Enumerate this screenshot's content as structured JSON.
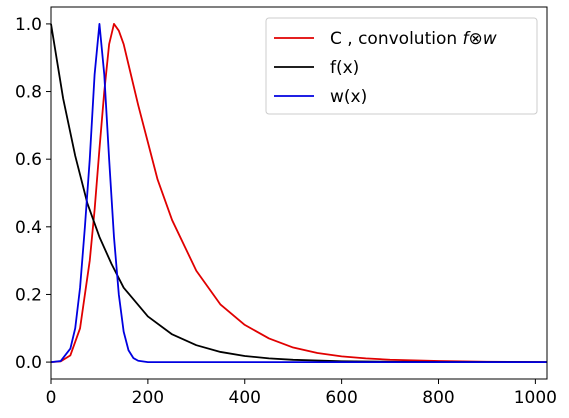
{
  "chart_data": {
    "type": "line",
    "title": "",
    "xlabel": "",
    "ylabel": "",
    "xlim": [
      0,
      1024
    ],
    "ylim": [
      -0.05,
      1.05
    ],
    "grid": false,
    "legend_position": "top-right",
    "x_ticks": [
      "0",
      "200",
      "400",
      "600",
      "800",
      "1000"
    ],
    "y_ticks": [
      "0.0",
      "0.2",
      "0.4",
      "0.6",
      "0.8",
      "1.0"
    ],
    "legend": {
      "c_prefix": "C , convolution ",
      "c_formula": "f⊗w"
    },
    "series": [
      {
        "name": "C , convolution f⊗w",
        "color": "#e00000",
        "x": [
          0,
          20,
          40,
          60,
          80,
          90,
          100,
          110,
          120,
          130,
          140,
          150,
          160,
          180,
          200,
          220,
          250,
          300,
          350,
          400,
          450,
          500,
          550,
          600,
          650,
          700,
          800,
          900,
          1024
        ],
        "y": [
          0.0,
          0.002,
          0.02,
          0.1,
          0.3,
          0.45,
          0.63,
          0.8,
          0.94,
          1.0,
          0.98,
          0.94,
          0.88,
          0.76,
          0.65,
          0.54,
          0.42,
          0.27,
          0.17,
          0.11,
          0.07,
          0.043,
          0.027,
          0.017,
          0.011,
          0.007,
          0.003,
          0.001,
          0.0
        ]
      },
      {
        "name": "f(x)",
        "color": "#000000",
        "x": [
          0,
          25,
          50,
          75,
          100,
          125,
          150,
          200,
          250,
          300,
          350,
          400,
          450,
          500,
          600,
          700,
          800,
          900,
          1024
        ],
        "y": [
          1.0,
          0.78,
          0.61,
          0.47,
          0.37,
          0.29,
          0.22,
          0.135,
          0.082,
          0.05,
          0.03,
          0.018,
          0.011,
          0.0067,
          0.0025,
          0.0009,
          0.0003,
          0.0001,
          0.0
        ]
      },
      {
        "name": "w(x)",
        "color": "#0000e0",
        "x": [
          0,
          20,
          40,
          50,
          60,
          70,
          80,
          90,
          100,
          110,
          120,
          130,
          140,
          150,
          160,
          170,
          180,
          200,
          300,
          1024
        ],
        "y": [
          0.0,
          0.003,
          0.04,
          0.1,
          0.22,
          0.4,
          0.6,
          0.85,
          1.0,
          0.85,
          0.6,
          0.37,
          0.2,
          0.09,
          0.035,
          0.012,
          0.004,
          0.0,
          0.0,
          0.0
        ]
      }
    ]
  }
}
